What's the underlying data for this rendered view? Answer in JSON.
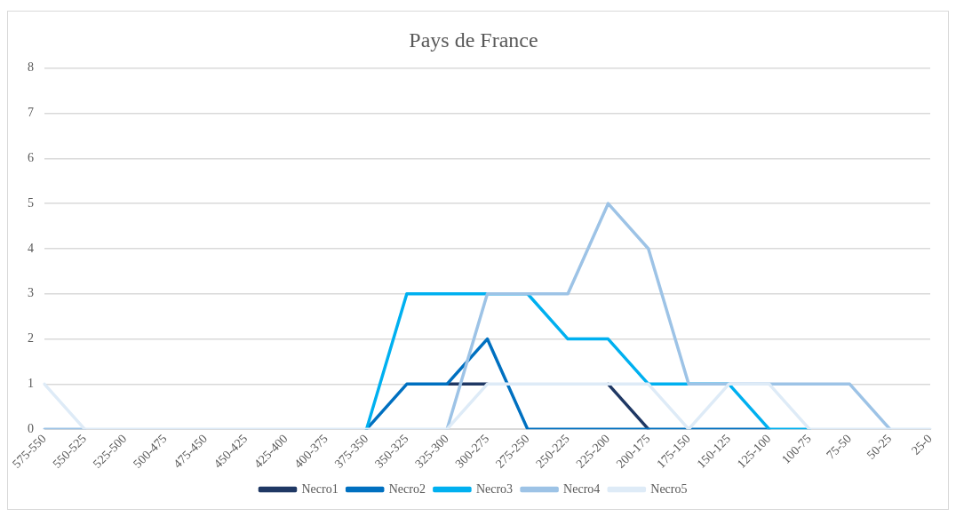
{
  "chart_data": {
    "type": "line",
    "title": "Pays de France",
    "categories": [
      "575-550",
      "550-525",
      "525-500",
      "500-475",
      "475-450",
      "450-425",
      "425-400",
      "400-375",
      "375-350",
      "350-325",
      "325-300",
      "300-275",
      "275-250",
      "250-225",
      "225-200",
      "200-175",
      "175-150",
      "150-125",
      "125-100",
      "100-75",
      "75-50",
      "50-25",
      "25-0"
    ],
    "series": [
      {
        "name": "Necro1",
        "color": "#1f3864",
        "values": [
          null,
          null,
          null,
          null,
          null,
          null,
          null,
          null,
          null,
          null,
          1,
          1,
          null,
          null,
          1,
          0,
          null,
          null,
          null,
          null,
          null,
          null,
          null
        ]
      },
      {
        "name": "Necro2",
        "color": "#0070c0",
        "values": [
          null,
          null,
          null,
          null,
          null,
          null,
          null,
          null,
          0,
          1,
          1,
          2,
          0,
          0,
          0,
          0,
          0,
          0,
          0,
          null,
          null,
          null,
          null
        ]
      },
      {
        "name": "Necro3",
        "color": "#00b0f0",
        "values": [
          null,
          null,
          null,
          null,
          null,
          null,
          null,
          null,
          0,
          3,
          3,
          3,
          3,
          2,
          2,
          1,
          1,
          1,
          0,
          0,
          null,
          null,
          null
        ]
      },
      {
        "name": "Necro4",
        "color": "#9dc3e6",
        "values": [
          0,
          0,
          null,
          null,
          null,
          null,
          null,
          null,
          null,
          null,
          0,
          3,
          3,
          3,
          5,
          4,
          1,
          1,
          1,
          1,
          1,
          0,
          null
        ]
      },
      {
        "name": "Necro5",
        "color": "#deebf7",
        "values": [
          1,
          0,
          0,
          0,
          0,
          0,
          0,
          0,
          0,
          0,
          0,
          1,
          1,
          1,
          1,
          1,
          0,
          1,
          1,
          0,
          0,
          0,
          0
        ]
      }
    ],
    "ylim": [
      0,
      8
    ],
    "yticks": [
      0,
      1,
      2,
      3,
      4,
      5,
      6,
      7,
      8
    ],
    "grid": "y",
    "legend": "bottom",
    "marker": "none",
    "line_style": "solid"
  }
}
